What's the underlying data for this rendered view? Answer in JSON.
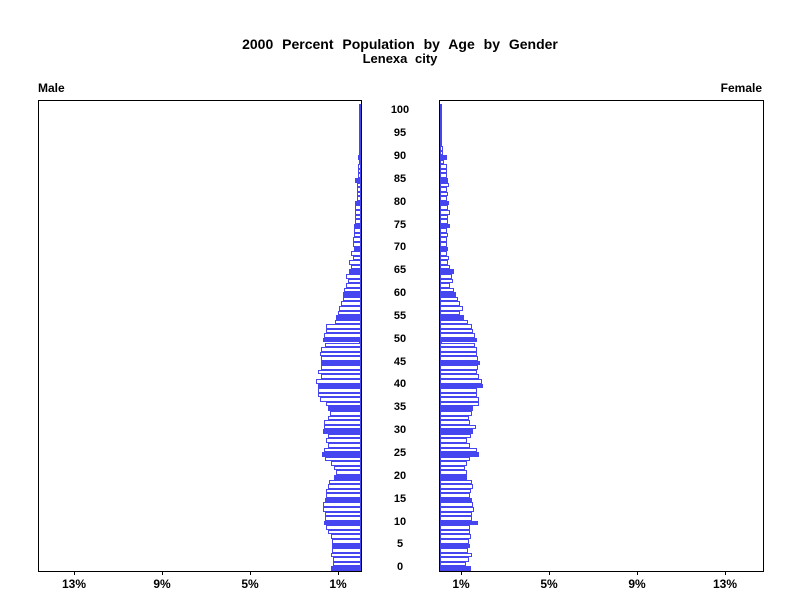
{
  "title": {
    "line1": "2000 Percent Population by Age by Gender",
    "line2": "Lenexa city"
  },
  "side_labels": {
    "left": "Male",
    "right": "Female"
  },
  "colors": {
    "bar_blue": "#4646f0",
    "frame_black": "#000000",
    "background": "#ffffff"
  },
  "age_axis": {
    "tick_labels": [
      "0",
      "5",
      "10",
      "15",
      "20",
      "25",
      "30",
      "35",
      "40",
      "45",
      "50",
      "55",
      "60",
      "65",
      "70",
      "75",
      "80",
      "85",
      "90",
      "95",
      "100"
    ],
    "tick_step": 5
  },
  "percent_axis": {
    "tick_values": [
      1,
      5,
      9,
      13
    ],
    "male_tick_labels": [
      "13%",
      "9%",
      "5%",
      "1%"
    ],
    "female_tick_labels": [
      "1%",
      "5%",
      "9%",
      "13%"
    ],
    "max_percent": 14.6
  },
  "chart_data": {
    "type": "bar",
    "subtype": "population-pyramid",
    "title": "2000 Percent Population by Age by Gender",
    "subtitle": "Lenexa city",
    "unit": "percent of total population",
    "orientation": "horizontal, male bars extend left, female bars extend right",
    "age_min": 0,
    "age_max": 100,
    "bar_per": "single year of age",
    "x_ticks_percent": [
      1,
      5,
      9,
      13
    ],
    "style_note": "bars at ages divisible by 5 are solid blue; other bars are white with blue outline",
    "series": [
      {
        "name": "Male",
        "side": "left",
        "values_by_single_year_age": [
          1.36,
          1.26,
          1.29,
          1.36,
          1.32,
          1.32,
          1.32,
          1.36,
          1.49,
          1.59,
          1.67,
          1.62,
          1.62,
          1.71,
          1.71,
          1.62,
          1.59,
          1.59,
          1.5,
          1.44,
          1.24,
          1.14,
          1.24,
          1.36,
          1.65,
          1.77,
          1.67,
          1.49,
          1.59,
          1.5,
          1.71,
          1.7,
          1.67,
          1.5,
          1.4,
          1.5,
          1.59,
          1.86,
          1.97,
          1.94,
          1.97,
          2.04,
          1.82,
          1.94,
          1.8,
          1.8,
          1.8,
          1.86,
          1.8,
          1.64,
          1.71,
          1.66,
          1.6,
          1.6,
          1.2,
          1.14,
          1.06,
          1.0,
          0.9,
          0.83,
          0.83,
          0.76,
          0.68,
          0.6,
          0.68,
          0.53,
          0.45,
          0.53,
          0.38,
          0.45,
          0.33,
          0.36,
          0.35,
          0.32,
          0.3,
          0.3,
          0.28,
          0.27,
          0.27,
          0.25,
          0.25,
          0.2,
          0.2,
          0.18,
          0.2,
          0.25,
          0.15,
          0.13,
          0.12,
          0.1,
          0.12,
          0.08,
          0.06,
          0.05,
          0.05,
          0.05,
          0.03,
          0.02,
          0.02,
          0.01,
          0.02
        ]
      },
      {
        "name": "Female",
        "side": "right",
        "values_by_single_year_age": [
          1.4,
          1.18,
          1.33,
          1.44,
          1.29,
          1.36,
          1.33,
          1.4,
          1.36,
          1.36,
          1.74,
          1.44,
          1.44,
          1.55,
          1.49,
          1.44,
          1.36,
          1.4,
          1.52,
          1.44,
          1.24,
          1.21,
          1.14,
          1.21,
          1.36,
          1.79,
          1.7,
          1.36,
          1.21,
          1.4,
          1.52,
          1.64,
          1.36,
          1.33,
          1.44,
          1.52,
          1.79,
          1.79,
          1.7,
          1.7,
          1.94,
          1.89,
          1.79,
          1.67,
          1.74,
          1.82,
          1.74,
          1.67,
          1.67,
          1.59,
          1.67,
          1.59,
          1.5,
          1.44,
          1.29,
          1.09,
          0.9,
          1.03,
          0.9,
          0.83,
          0.73,
          0.64,
          0.45,
          0.6,
          0.53,
          0.64,
          0.45,
          0.38,
          0.42,
          0.3,
          0.38,
          0.3,
          0.33,
          0.38,
          0.3,
          0.45,
          0.38,
          0.38,
          0.45,
          0.38,
          0.42,
          0.3,
          0.38,
          0.33,
          0.42,
          0.38,
          0.33,
          0.3,
          0.33,
          0.18,
          0.3,
          0.15,
          0.12,
          0.09,
          0.09,
          0.06,
          0.04,
          0.03,
          0.02,
          0.02,
          0.02
        ]
      }
    ]
  }
}
